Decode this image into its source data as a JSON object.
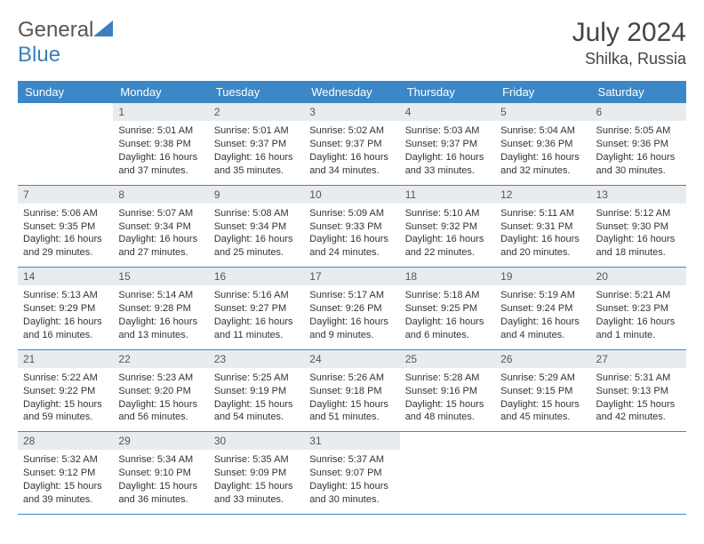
{
  "logo": {
    "text1": "General",
    "text2": "Blue"
  },
  "title": "July 2024",
  "location": "Shilka, Russia",
  "header_bg": "#3b87c8",
  "header_fg": "#ffffff",
  "daynum_bg": "#e9ecef",
  "border_color": "#3b87c8",
  "weekdays": [
    "Sunday",
    "Monday",
    "Tuesday",
    "Wednesday",
    "Thursday",
    "Friday",
    "Saturday"
  ],
  "grid": [
    [
      null,
      {
        "n": "1",
        "sr": "Sunrise: 5:01 AM",
        "ss": "Sunset: 9:38 PM",
        "d1": "Daylight: 16 hours",
        "d2": "and 37 minutes."
      },
      {
        "n": "2",
        "sr": "Sunrise: 5:01 AM",
        "ss": "Sunset: 9:37 PM",
        "d1": "Daylight: 16 hours",
        "d2": "and 35 minutes."
      },
      {
        "n": "3",
        "sr": "Sunrise: 5:02 AM",
        "ss": "Sunset: 9:37 PM",
        "d1": "Daylight: 16 hours",
        "d2": "and 34 minutes."
      },
      {
        "n": "4",
        "sr": "Sunrise: 5:03 AM",
        "ss": "Sunset: 9:37 PM",
        "d1": "Daylight: 16 hours",
        "d2": "and 33 minutes."
      },
      {
        "n": "5",
        "sr": "Sunrise: 5:04 AM",
        "ss": "Sunset: 9:36 PM",
        "d1": "Daylight: 16 hours",
        "d2": "and 32 minutes."
      },
      {
        "n": "6",
        "sr": "Sunrise: 5:05 AM",
        "ss": "Sunset: 9:36 PM",
        "d1": "Daylight: 16 hours",
        "d2": "and 30 minutes."
      }
    ],
    [
      {
        "n": "7",
        "sr": "Sunrise: 5:06 AM",
        "ss": "Sunset: 9:35 PM",
        "d1": "Daylight: 16 hours",
        "d2": "and 29 minutes."
      },
      {
        "n": "8",
        "sr": "Sunrise: 5:07 AM",
        "ss": "Sunset: 9:34 PM",
        "d1": "Daylight: 16 hours",
        "d2": "and 27 minutes."
      },
      {
        "n": "9",
        "sr": "Sunrise: 5:08 AM",
        "ss": "Sunset: 9:34 PM",
        "d1": "Daylight: 16 hours",
        "d2": "and 25 minutes."
      },
      {
        "n": "10",
        "sr": "Sunrise: 5:09 AM",
        "ss": "Sunset: 9:33 PM",
        "d1": "Daylight: 16 hours",
        "d2": "and 24 minutes."
      },
      {
        "n": "11",
        "sr": "Sunrise: 5:10 AM",
        "ss": "Sunset: 9:32 PM",
        "d1": "Daylight: 16 hours",
        "d2": "and 22 minutes."
      },
      {
        "n": "12",
        "sr": "Sunrise: 5:11 AM",
        "ss": "Sunset: 9:31 PM",
        "d1": "Daylight: 16 hours",
        "d2": "and 20 minutes."
      },
      {
        "n": "13",
        "sr": "Sunrise: 5:12 AM",
        "ss": "Sunset: 9:30 PM",
        "d1": "Daylight: 16 hours",
        "d2": "and 18 minutes."
      }
    ],
    [
      {
        "n": "14",
        "sr": "Sunrise: 5:13 AM",
        "ss": "Sunset: 9:29 PM",
        "d1": "Daylight: 16 hours",
        "d2": "and 16 minutes."
      },
      {
        "n": "15",
        "sr": "Sunrise: 5:14 AM",
        "ss": "Sunset: 9:28 PM",
        "d1": "Daylight: 16 hours",
        "d2": "and 13 minutes."
      },
      {
        "n": "16",
        "sr": "Sunrise: 5:16 AM",
        "ss": "Sunset: 9:27 PM",
        "d1": "Daylight: 16 hours",
        "d2": "and 11 minutes."
      },
      {
        "n": "17",
        "sr": "Sunrise: 5:17 AM",
        "ss": "Sunset: 9:26 PM",
        "d1": "Daylight: 16 hours",
        "d2": "and 9 minutes."
      },
      {
        "n": "18",
        "sr": "Sunrise: 5:18 AM",
        "ss": "Sunset: 9:25 PM",
        "d1": "Daylight: 16 hours",
        "d2": "and 6 minutes."
      },
      {
        "n": "19",
        "sr": "Sunrise: 5:19 AM",
        "ss": "Sunset: 9:24 PM",
        "d1": "Daylight: 16 hours",
        "d2": "and 4 minutes."
      },
      {
        "n": "20",
        "sr": "Sunrise: 5:21 AM",
        "ss": "Sunset: 9:23 PM",
        "d1": "Daylight: 16 hours",
        "d2": "and 1 minute."
      }
    ],
    [
      {
        "n": "21",
        "sr": "Sunrise: 5:22 AM",
        "ss": "Sunset: 9:22 PM",
        "d1": "Daylight: 15 hours",
        "d2": "and 59 minutes."
      },
      {
        "n": "22",
        "sr": "Sunrise: 5:23 AM",
        "ss": "Sunset: 9:20 PM",
        "d1": "Daylight: 15 hours",
        "d2": "and 56 minutes."
      },
      {
        "n": "23",
        "sr": "Sunrise: 5:25 AM",
        "ss": "Sunset: 9:19 PM",
        "d1": "Daylight: 15 hours",
        "d2": "and 54 minutes."
      },
      {
        "n": "24",
        "sr": "Sunrise: 5:26 AM",
        "ss": "Sunset: 9:18 PM",
        "d1": "Daylight: 15 hours",
        "d2": "and 51 minutes."
      },
      {
        "n": "25",
        "sr": "Sunrise: 5:28 AM",
        "ss": "Sunset: 9:16 PM",
        "d1": "Daylight: 15 hours",
        "d2": "and 48 minutes."
      },
      {
        "n": "26",
        "sr": "Sunrise: 5:29 AM",
        "ss": "Sunset: 9:15 PM",
        "d1": "Daylight: 15 hours",
        "d2": "and 45 minutes."
      },
      {
        "n": "27",
        "sr": "Sunrise: 5:31 AM",
        "ss": "Sunset: 9:13 PM",
        "d1": "Daylight: 15 hours",
        "d2": "and 42 minutes."
      }
    ],
    [
      {
        "n": "28",
        "sr": "Sunrise: 5:32 AM",
        "ss": "Sunset: 9:12 PM",
        "d1": "Daylight: 15 hours",
        "d2": "and 39 minutes."
      },
      {
        "n": "29",
        "sr": "Sunrise: 5:34 AM",
        "ss": "Sunset: 9:10 PM",
        "d1": "Daylight: 15 hours",
        "d2": "and 36 minutes."
      },
      {
        "n": "30",
        "sr": "Sunrise: 5:35 AM",
        "ss": "Sunset: 9:09 PM",
        "d1": "Daylight: 15 hours",
        "d2": "and 33 minutes."
      },
      {
        "n": "31",
        "sr": "Sunrise: 5:37 AM",
        "ss": "Sunset: 9:07 PM",
        "d1": "Daylight: 15 hours",
        "d2": "and 30 minutes."
      },
      null,
      null,
      null
    ]
  ]
}
